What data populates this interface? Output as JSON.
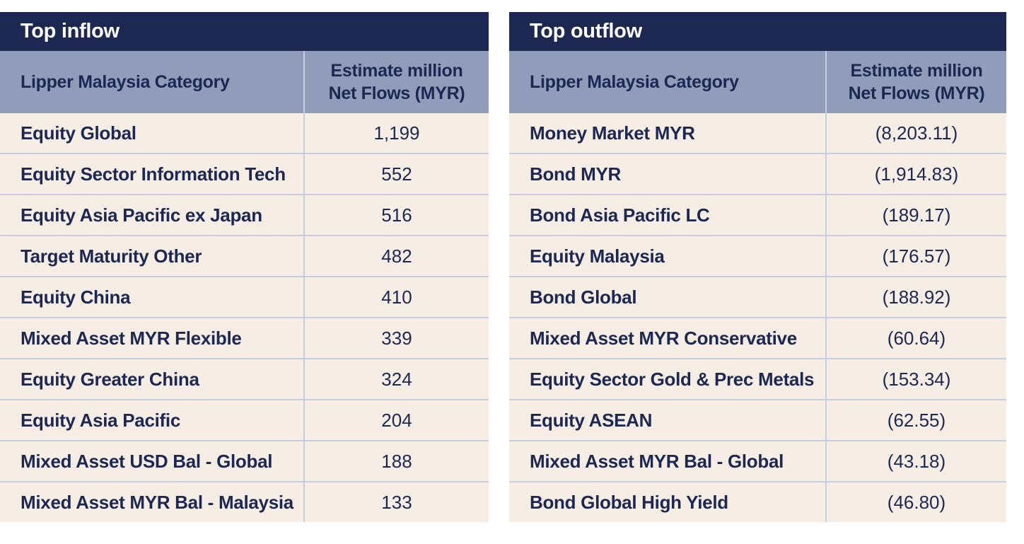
{
  "colors": {
    "title_bg": "#1c2752",
    "header_bg": "#909cba",
    "row_bg": "#f6eee4",
    "grid": "#c7cde3",
    "text": "#1c2752"
  },
  "inflow": {
    "title": "Top inflow",
    "headers": {
      "category": "Lipper Malaysia Category",
      "value_line1": "Estimate million",
      "value_line2": "Net Flows (MYR)"
    },
    "rows": [
      {
        "category": "Equity Global",
        "value": "1,199"
      },
      {
        "category": "Equity Sector Information Tech",
        "value": "552"
      },
      {
        "category": "Equity Asia Pacific ex Japan",
        "value": "516"
      },
      {
        "category": "Target Maturity Other",
        "value": "482"
      },
      {
        "category": "Equity China",
        "value": "410"
      },
      {
        "category": "Mixed Asset MYR Flexible",
        "value": "339"
      },
      {
        "category": "Equity Greater China",
        "value": "324"
      },
      {
        "category": "Equity Asia Pacific",
        "value": "204"
      },
      {
        "category": "Mixed Asset USD Bal - Global",
        "value": "188"
      },
      {
        "category": "Mixed Asset MYR Bal - Malaysia",
        "value": "133"
      }
    ]
  },
  "outflow": {
    "title": "Top outflow",
    "headers": {
      "category": "Lipper Malaysia Category",
      "value_line1": "Estimate million",
      "value_line2": "Net Flows (MYR)"
    },
    "rows": [
      {
        "category": "Money Market MYR",
        "value": "(8,203.11)"
      },
      {
        "category": "Bond MYR",
        "value": "(1,914.83)"
      },
      {
        "category": "Bond Asia Pacific LC",
        "value": "(189.17)"
      },
      {
        "category": "Equity Malaysia",
        "value": "(176.57)"
      },
      {
        "category": "Bond Global",
        "value": "(188.92)"
      },
      {
        "category": "Mixed Asset MYR Conservative",
        "value": "(60.64)"
      },
      {
        "category": "Equity Sector Gold & Prec Metals",
        "value": "(153.34)"
      },
      {
        "category": "Equity ASEAN",
        "value": "(62.55)"
      },
      {
        "category": "Mixed Asset MYR Bal - Global",
        "value": "(43.18)"
      },
      {
        "category": "Bond Global High Yield",
        "value": "(46.80)"
      }
    ]
  }
}
